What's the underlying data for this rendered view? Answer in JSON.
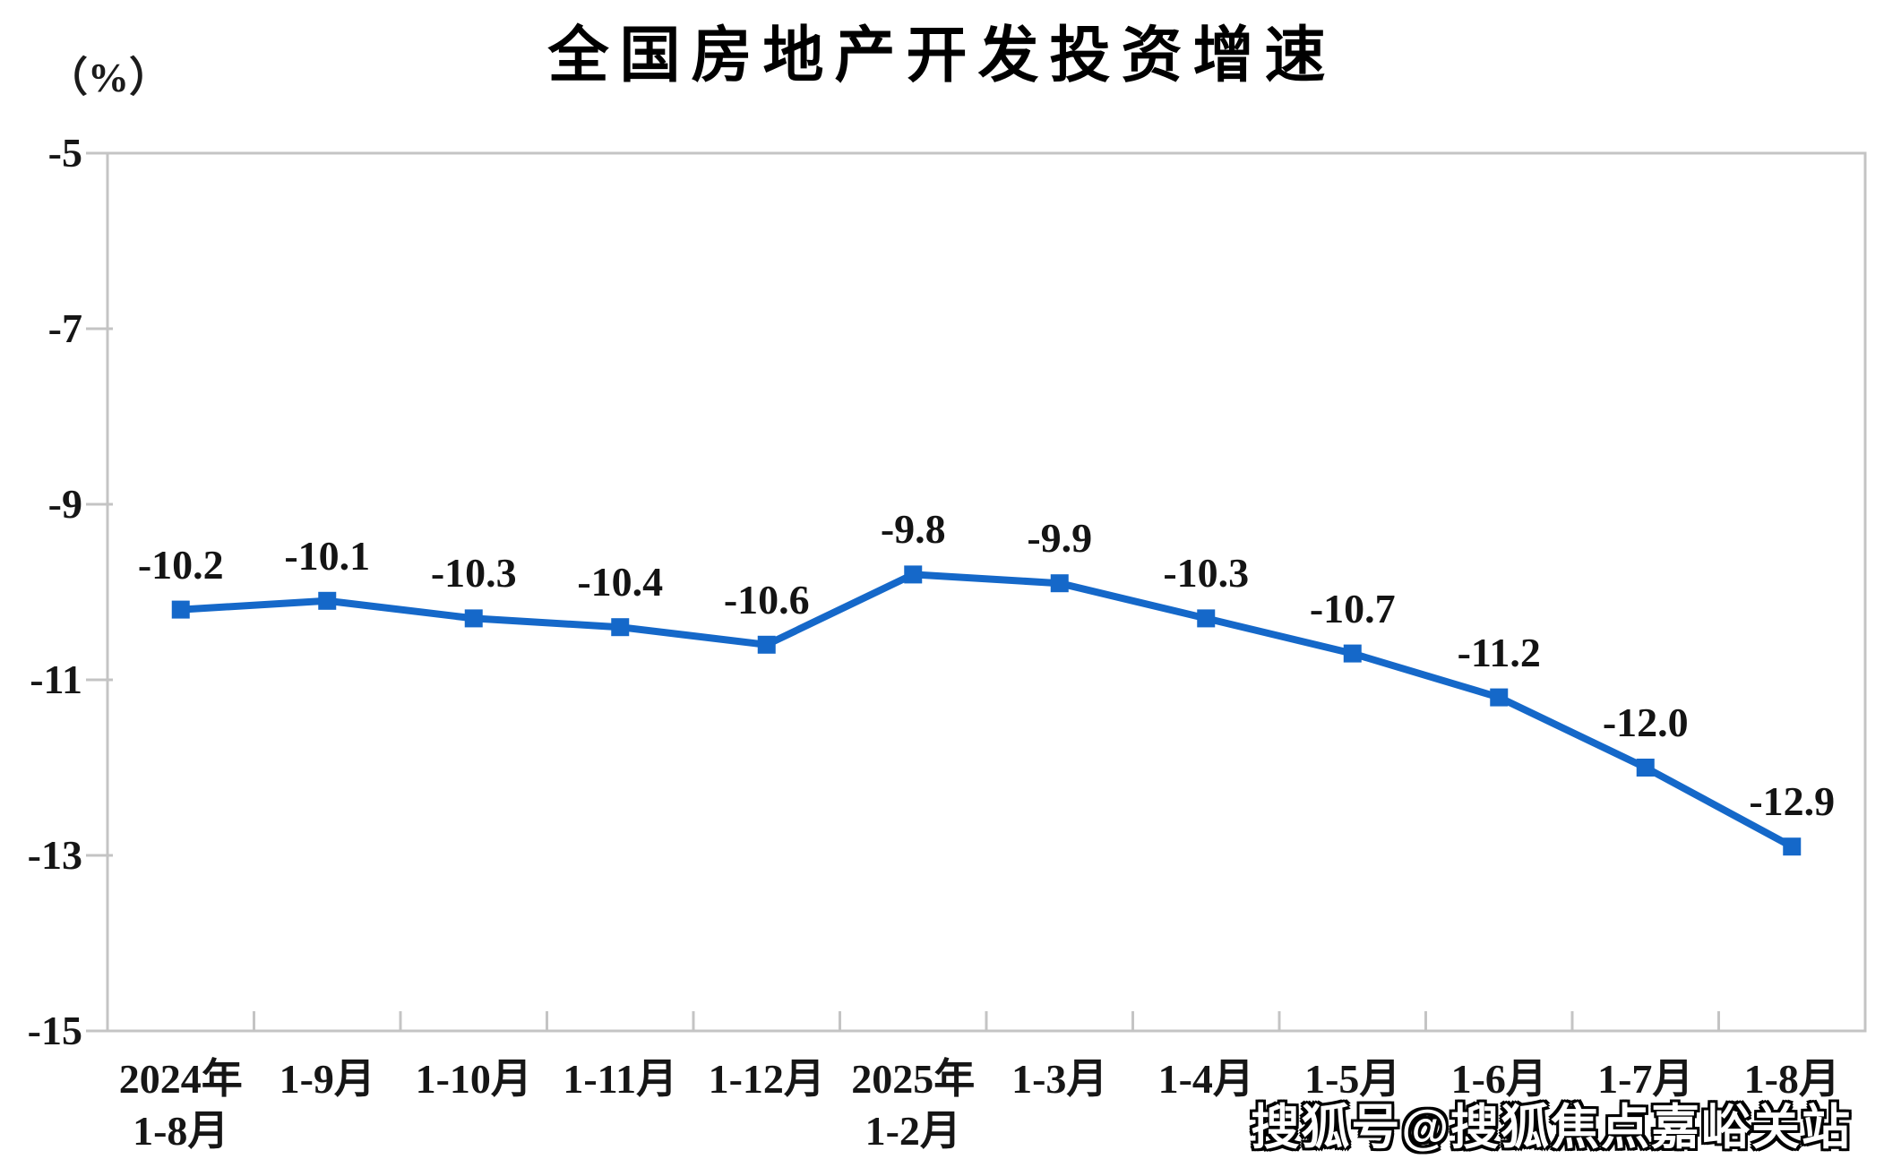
{
  "chart_data": {
    "type": "line",
    "title": "全国房地产开发投资增速",
    "unit_label": "（%）",
    "categories": [
      {
        "label": "2024年",
        "sub": "1-8月"
      },
      {
        "label": "1-9月",
        "sub": ""
      },
      {
        "label": "1-10月",
        "sub": ""
      },
      {
        "label": "1-11月",
        "sub": ""
      },
      {
        "label": "1-12月",
        "sub": ""
      },
      {
        "label": "2025年",
        "sub": "1-2月"
      },
      {
        "label": "1-3月",
        "sub": ""
      },
      {
        "label": "1-4月",
        "sub": ""
      },
      {
        "label": "1-5月",
        "sub": ""
      },
      {
        "label": "1-6月",
        "sub": ""
      },
      {
        "label": "1-7月",
        "sub": ""
      },
      {
        "label": "1-8月",
        "sub": ""
      }
    ],
    "series": [
      {
        "name": "全国房地产开发投资增速",
        "values": [
          -10.2,
          -10.1,
          -10.3,
          -10.4,
          -10.6,
          -9.8,
          -9.9,
          -10.3,
          -10.7,
          -11.2,
          -12.0,
          -12.9
        ],
        "data_labels": [
          "-10.2",
          "-10.1",
          "-10.3",
          "-10.4",
          "-10.6",
          "-9.8",
          "-9.9",
          "-10.3",
          "-10.7",
          "-11.2",
          "-12.0",
          "-12.9"
        ]
      }
    ],
    "y_ticks": [
      "-5",
      "-7",
      "-9",
      "-11",
      "-13",
      "-15"
    ],
    "ylim": [
      -15,
      -5
    ],
    "xlabel": "",
    "ylabel": "（%）",
    "grid": false,
    "legend_position": "none",
    "marker": "square",
    "colors": {
      "line": "#1568C9",
      "marker": "#1568C9",
      "axis": "#C4C4C4",
      "text": "#161616",
      "title": "#000000",
      "background": "#FFFFFF"
    }
  },
  "watermark": {
    "text": "搜狐号@搜狐焦点嘉峪关站"
  }
}
